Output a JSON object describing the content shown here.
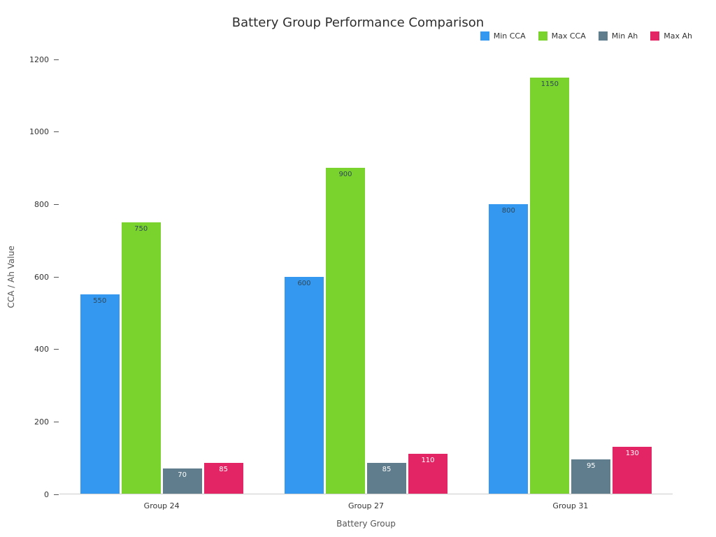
{
  "chart_data": {
    "type": "bar",
    "title": "Battery Group Performance Comparison",
    "xlabel": "Battery Group",
    "ylabel": "CCA / Ah Value",
    "categories": [
      "Group 24",
      "Group 27",
      "Group 31"
    ],
    "series": [
      {
        "name": "Min CCA",
        "color": "#3598f0",
        "label_color": "#2f4858",
        "values": [
          550,
          600,
          800
        ]
      },
      {
        "name": "Max CCA",
        "color": "#79d32c",
        "label_color": "#2f4858",
        "values": [
          750,
          900,
          1150
        ]
      },
      {
        "name": "Min Ah",
        "color": "#5f7d8c",
        "label_color": "#ffffff",
        "values": [
          70,
          85,
          95
        ]
      },
      {
        "name": "Max Ah",
        "color": "#e32566",
        "label_color": "#ffffff",
        "values": [
          85,
          110,
          130
        ]
      }
    ],
    "ylim": [
      0,
      1200
    ],
    "yticks": [
      0,
      200,
      400,
      600,
      800,
      1000,
      1200
    ],
    "legend_position": "top-right",
    "grid": false
  }
}
